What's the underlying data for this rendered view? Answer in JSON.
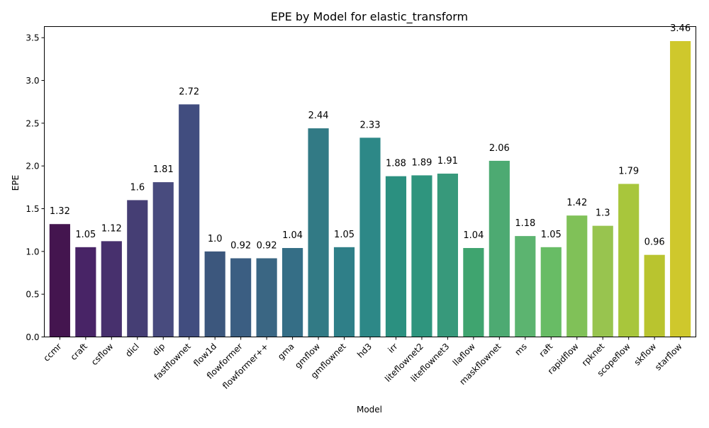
{
  "chart_data": {
    "type": "bar",
    "title": "EPE by Model for elastic_transform",
    "xlabel": "Model",
    "ylabel": "EPE",
    "ylim": [
      0,
      3.63
    ],
    "yticks": [
      0.0,
      0.5,
      1.0,
      1.5,
      2.0,
      2.5,
      3.0,
      3.5
    ],
    "ytick_labels": [
      "0.0",
      "0.5",
      "1.0",
      "1.5",
      "2.0",
      "2.5",
      "3.0",
      "3.5"
    ],
    "grid": false,
    "legend": "none",
    "categories": [
      "ccmr",
      "craft",
      "csflow",
      "dicl",
      "dip",
      "fastflownet",
      "flow1d",
      "flowformer",
      "flowformer++",
      "gma",
      "gmflow",
      "gmflownet",
      "hd3",
      "irr",
      "liteflownet2",
      "liteflownet3",
      "llaflow",
      "maskflownet",
      "ms",
      "raft",
      "rapidflow",
      "rpknet",
      "scopeflow",
      "skflow",
      "starflow"
    ],
    "values": [
      1.32,
      1.05,
      1.12,
      1.6,
      1.81,
      2.72,
      1.0,
      0.92,
      0.92,
      1.04,
      2.44,
      1.05,
      2.33,
      1.88,
      1.89,
      1.91,
      1.04,
      2.06,
      1.18,
      1.05,
      1.42,
      1.3,
      1.79,
      0.96,
      3.46
    ],
    "value_labels": [
      "1.32",
      "1.05",
      "1.12",
      "1.6",
      "1.81",
      "2.72",
      "1.0",
      "0.92",
      "0.92",
      "1.04",
      "2.44",
      "1.05",
      "2.33",
      "1.88",
      "1.89",
      "1.91",
      "1.04",
      "2.06",
      "1.18",
      "1.05",
      "1.42",
      "1.3",
      "1.79",
      "0.96",
      "3.46"
    ],
    "colors": [
      "#44154f",
      "#482466",
      "#47306d",
      "#453e74",
      "#484b7e",
      "#414d7f",
      "#3c577d",
      "#3b5e82",
      "#3a6683",
      "#356e86",
      "#327a85",
      "#2f7f88",
      "#2d8887",
      "#2b9080",
      "#2f957e",
      "#37997b",
      "#3fa46f",
      "#4daa72",
      "#5cb470",
      "#68bc65",
      "#80c158",
      "#98c44f",
      "#a8c63c",
      "#b9c42f",
      "#cfc82c"
    ]
  }
}
